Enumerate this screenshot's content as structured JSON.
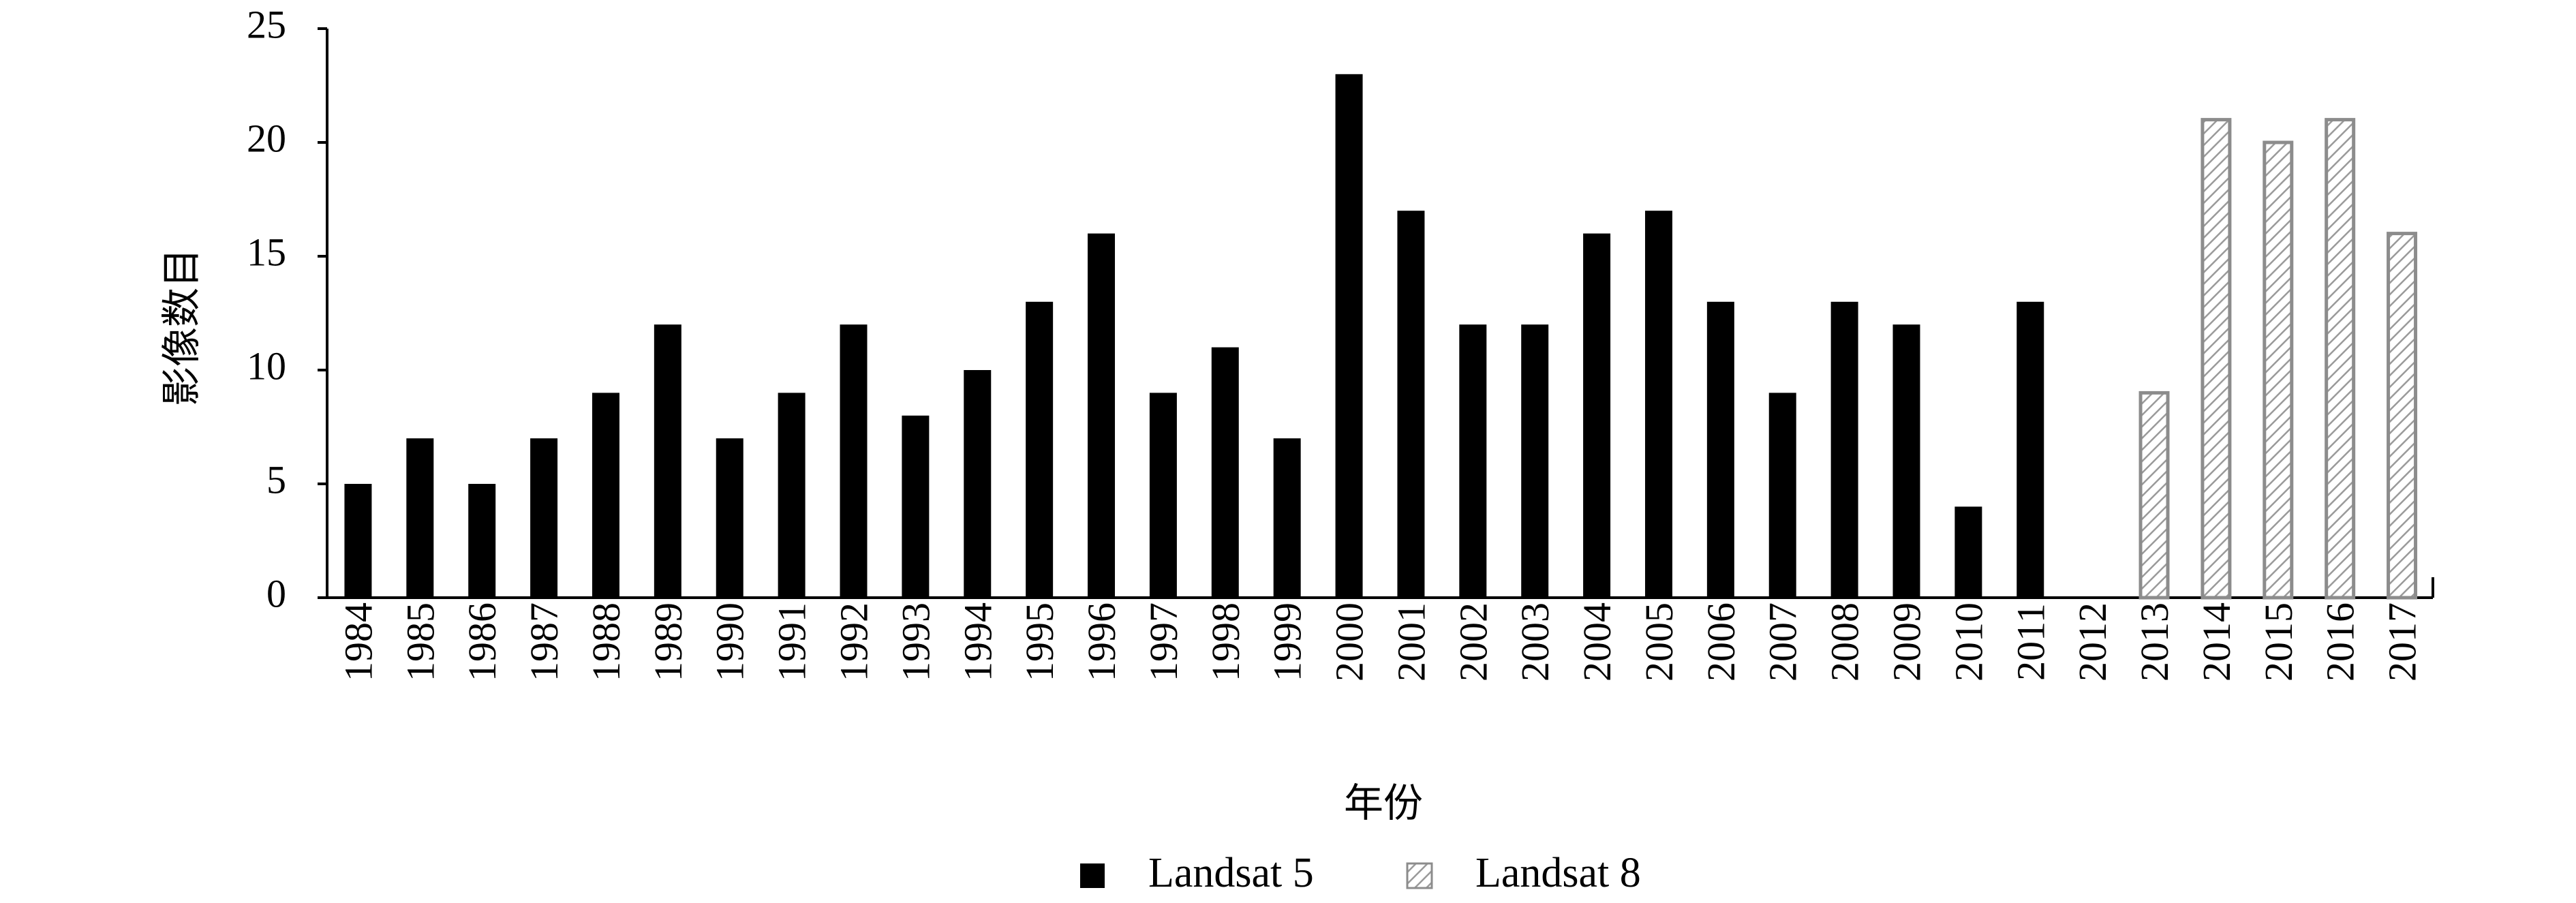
{
  "chart_data": {
    "type": "bar",
    "title": "",
    "xlabel": "年份",
    "ylabel": "影像数目",
    "ylim": [
      0,
      25
    ],
    "yticks": [
      0,
      5,
      10,
      15,
      20,
      25
    ],
    "grid": false,
    "legend_position": "bottom",
    "categories": [
      "1984",
      "1985",
      "1986",
      "1987",
      "1988",
      "1989",
      "1990",
      "1991",
      "1992",
      "1993",
      "1994",
      "1995",
      "1996",
      "1997",
      "1998",
      "1999",
      "2000",
      "2001",
      "2002",
      "2003",
      "2004",
      "2005",
      "2006",
      "2007",
      "2008",
      "2009",
      "2010",
      "2011",
      "2012",
      "2013",
      "2014",
      "2015",
      "2016",
      "2017"
    ],
    "series": [
      {
        "name": "Landsat 5",
        "color": "#000000",
        "values": [
          5,
          7,
          5,
          7,
          9,
          12,
          7,
          9,
          12,
          8,
          10,
          13,
          16,
          9,
          11,
          7,
          23,
          17,
          12,
          12,
          16,
          17,
          13,
          9,
          13,
          12,
          4,
          13,
          null,
          null,
          null,
          null,
          null,
          null
        ]
      },
      {
        "name": "Landsat 8",
        "color": "#d9d9d9",
        "border": "#8c8c8c",
        "pattern": "diagonal-hatch",
        "values": [
          null,
          null,
          null,
          null,
          null,
          null,
          null,
          null,
          null,
          null,
          null,
          null,
          null,
          null,
          null,
          null,
          null,
          null,
          null,
          null,
          null,
          null,
          null,
          null,
          null,
          null,
          null,
          null,
          null,
          9,
          21,
          20,
          21,
          16
        ]
      }
    ]
  }
}
